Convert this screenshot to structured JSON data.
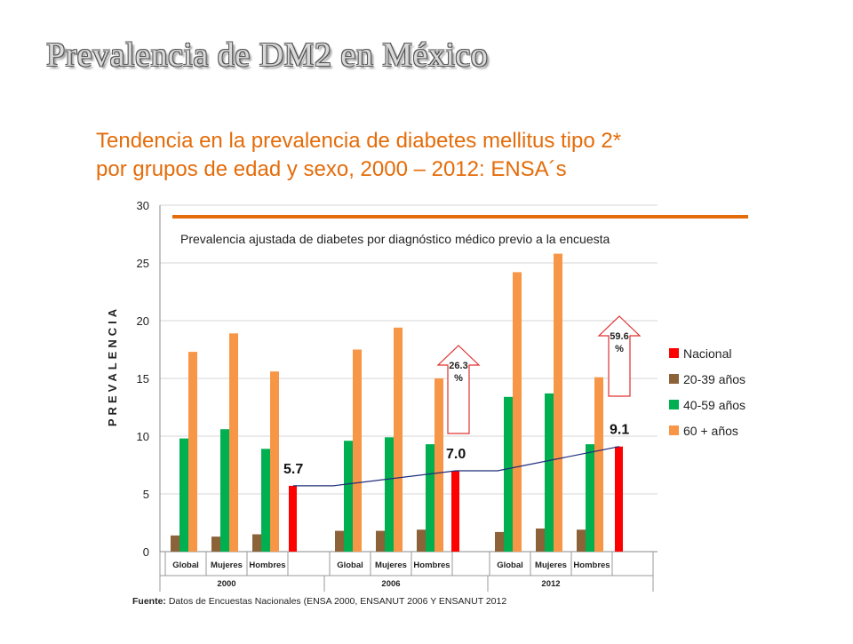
{
  "slide_title": "Prevalencia de DM2 en México",
  "subtitle": {
    "line1": "Tendencia en la prevalencia de diabetes mellitus tipo 2*",
    "line2": "por grupos de edad y sexo, 2000 – 2012: ENSA´s"
  },
  "source": {
    "label": "Fuente:",
    "text": "Datos de Encuestas Nacionales (ENSA 2000, ENSANUT 2006 Y ENSANUT 2012"
  },
  "colors": {
    "title_orange": "#e46c0a",
    "nacional": "#ff0000",
    "age_20_39": "#8c6239",
    "age_40_59": "#00b050",
    "age_60_plus": "#f79646",
    "trend_line": "#1f2d7a"
  },
  "chart_data": {
    "type": "bar",
    "title": "Prevalencia ajustada de diabetes por diagnóstico médico previo a la encuesta",
    "ylabel": "PREVALENCIA",
    "ylim": [
      0,
      30
    ],
    "yticks": [
      0,
      5,
      10,
      15,
      20,
      25,
      30
    ],
    "grid": true,
    "legend_position": "right",
    "years": [
      "2000",
      "2006",
      "2012"
    ],
    "subcategories": [
      "Global",
      "Mujeres",
      "Hombres"
    ],
    "series": [
      {
        "name": "20-39 años",
        "color": "#8c6239",
        "values": [
          [
            1.4,
            1.3,
            1.5
          ],
          [
            1.8,
            1.8,
            1.9
          ],
          [
            1.7,
            2.0,
            1.9
          ]
        ]
      },
      {
        "name": "40-59 años",
        "color": "#00b050",
        "values": [
          [
            9.8,
            10.6,
            8.9
          ],
          [
            9.6,
            9.9,
            9.3
          ],
          [
            13.4,
            13.7,
            9.3
          ]
        ]
      },
      {
        "name": "60 + años",
        "color": "#f79646",
        "values": [
          [
            17.3,
            18.9,
            15.6
          ],
          [
            17.5,
            19.4,
            15.0
          ],
          [
            24.2,
            25.8,
            15.1
          ]
        ]
      },
      {
        "name": "Nacional",
        "color": "#ff0000",
        "values": [
          5.7,
          7.0,
          9.1
        ]
      }
    ],
    "nacional_labels": [
      "5.7",
      "7.0",
      "9.1"
    ],
    "annotations": [
      {
        "text_top": "26.3",
        "text_bottom": "%",
        "year": "2006"
      },
      {
        "text_top": "59.6",
        "text_bottom": "%",
        "year": "2012"
      }
    ]
  }
}
